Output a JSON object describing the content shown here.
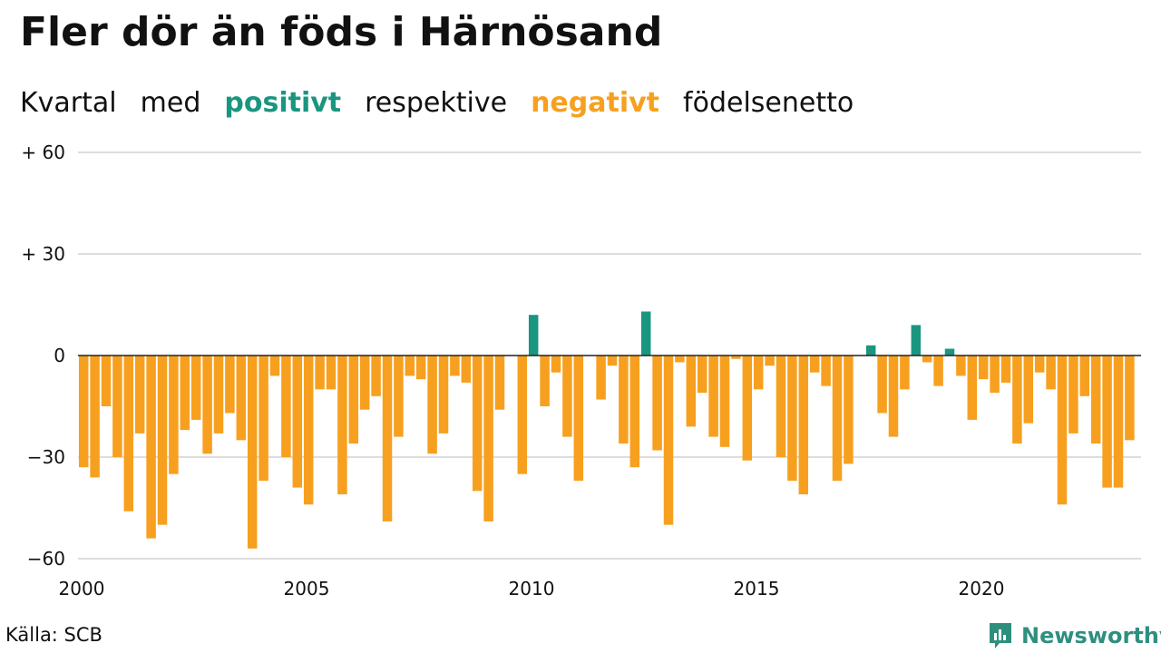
{
  "title": "Fler dör än föds i Härnösand",
  "subtitle": {
    "part1": "Kvartal",
    "part2": "med",
    "positive": "positivt",
    "part3": "respektive",
    "negative": "negativt",
    "part4": "födelsenetto"
  },
  "source": "Källa: SCB",
  "brand": "Newsworthy",
  "colors": {
    "positive": "#1a9680",
    "negative": "#f7a01f",
    "grid": "#dddddd",
    "brand": "#2f8f7f"
  },
  "chart_data": {
    "type": "bar",
    "title": "Fler dör än föds i Härnösand",
    "xlabel": "",
    "ylabel": "",
    "ylim": [
      -60,
      60
    ],
    "yticks": [
      60,
      30,
      0,
      -30,
      -60
    ],
    "ytick_labels": [
      "+ 60",
      "+ 30",
      "0",
      "−30",
      "−60"
    ],
    "xticks": [
      2000,
      2005,
      2010,
      2015,
      2020
    ],
    "grid": true,
    "start_year": 2000,
    "values": [
      -33,
      -36,
      -15,
      -30,
      -46,
      -23,
      -54,
      -50,
      -35,
      -22,
      -19,
      -29,
      -23,
      -17,
      -25,
      -57,
      -37,
      -6,
      -30,
      -39,
      -44,
      -10,
      -10,
      -41,
      -26,
      -16,
      -12,
      -49,
      -24,
      -6,
      -7,
      -29,
      -23,
      -6,
      -8,
      -40,
      -49,
      -16,
      -35,
      12,
      -15,
      -5,
      -24,
      -37,
      -13,
      -3,
      -26,
      -33,
      13,
      -28,
      -50,
      -2,
      -21,
      -11,
      -24,
      -27,
      -1,
      -31,
      -10,
      -3,
      -30,
      -37,
      -41,
      -5,
      -9,
      -37,
      -32,
      3,
      -17,
      -24,
      -10,
      9,
      -2,
      -9,
      2,
      -6,
      -19,
      -7,
      -11,
      -8,
      -26,
      -20,
      -5,
      -10,
      -44,
      -23,
      -12,
      -26,
      -39,
      -39,
      -25
    ],
    "x": [
      2000.25,
      2000.5,
      2000.75,
      2001.0,
      2001.25,
      2001.5,
      2001.75,
      2002.0,
      2002.25,
      2002.5,
      2002.75,
      2003.0,
      2003.25,
      2003.5,
      2003.75,
      2004.0,
      2004.25,
      2004.5,
      2004.75,
      2005.0,
      2005.25,
      2005.5,
      2005.75,
      2006.0,
      2006.25,
      2006.5,
      2006.75,
      2007.0,
      2007.25,
      2007.5,
      2007.75,
      2008.0,
      2008.25,
      2008.5,
      2008.75,
      2009.0,
      2009.25,
      2009.5,
      2010.0,
      2010.25,
      2010.5,
      2010.75,
      2011.0,
      2011.25,
      2011.75,
      2012.0,
      2012.25,
      2012.5,
      2012.75,
      2013.0,
      2013.25,
      2013.5,
      2013.75,
      2014.0,
      2014.25,
      2014.5,
      2014.75,
      2015.0,
      2015.25,
      2015.5,
      2015.75,
      2016.0,
      2016.25,
      2016.5,
      2016.75,
      2017.0,
      2017.25,
      2017.75,
      2018.0,
      2018.25,
      2018.5,
      2018.75,
      2019.0,
      2019.25,
      2019.5,
      2019.75,
      2020.0,
      2020.25,
      2020.5,
      2020.75,
      2021.0,
      2021.25,
      2021.5,
      2021.75,
      2022.0,
      2022.25,
      2022.5,
      2022.75,
      2023.0,
      2023.25,
      2023.5
    ]
  }
}
